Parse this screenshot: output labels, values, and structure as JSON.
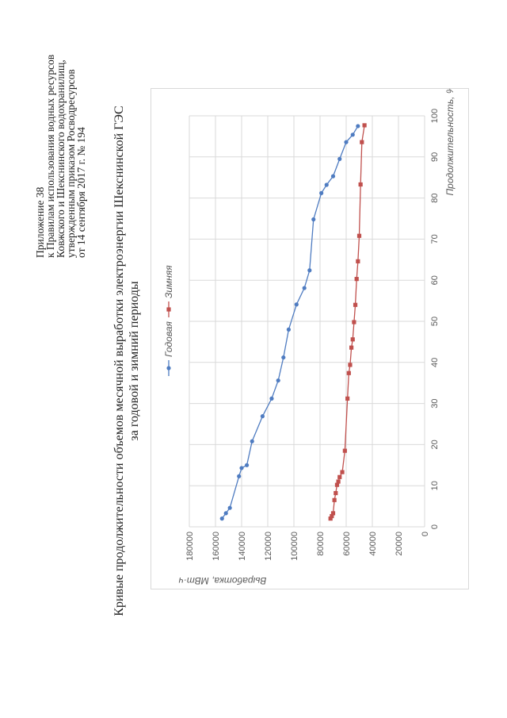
{
  "header": {
    "line1": "Приложение 38",
    "line2": "к Правилам использования водных ресурсов",
    "line3": "Ковжского и Шекснинского водохранилищ,",
    "line4": "утвержденным приказом Росводресурсов",
    "line5": "от 14 сентября 2017 г. № 194"
  },
  "title": {
    "line1": "Кривые продолжительности объемов месячной выработки электроэнергии Шекснинской ГЭС",
    "line2": "за годовой и зимний периоды"
  },
  "colors": {
    "series1": "#4f7cc1",
    "series2": "#c0504d",
    "grid": "#d9d9d9",
    "axis_text": "#595959"
  },
  "chart_data": {
    "type": "line",
    "title": "Кривые продолжительности объемов месячной выработки электроэнергии Шекснинской ГЭС за годовой и зимний периоды",
    "xlabel": "Продолжительность, %",
    "ylabel": "Выработка, МВт·ч",
    "xlim": [
      0,
      100
    ],
    "ylim": [
      0,
      180000
    ],
    "xticks": [
      0,
      10,
      20,
      30,
      40,
      50,
      60,
      70,
      80,
      90,
      100
    ],
    "xtick_labels": [
      "0",
      "10",
      "20",
      "30",
      "40",
      "50",
      "60",
      "70",
      "80",
      "90",
      "100"
    ],
    "yticks": [
      0,
      20000,
      40000,
      60000,
      80000,
      100000,
      120000,
      140000,
      160000,
      180000
    ],
    "ytick_labels": [
      "0",
      "20000",
      "40000",
      "60000",
      "80000",
      "100000",
      "120000",
      "140000",
      "160000",
      "180000"
    ],
    "grid": true,
    "legend_position": "top",
    "series": [
      {
        "name": "Годовая",
        "marker": "circle",
        "x": [
          2,
          3.3,
          4.6,
          12.3,
          14.3,
          15,
          20.8,
          26.9,
          31.2,
          35.6,
          41.2,
          48,
          54.1,
          58.1,
          62.4,
          74.8,
          81.2,
          83.2,
          85.3,
          89.5,
          93.6,
          95.4,
          97.5
        ],
        "y": [
          155000,
          152000,
          149000,
          142000,
          140000,
          136000,
          132000,
          124000,
          117000,
          112000,
          108000,
          104000,
          98000,
          92000,
          88000,
          85000,
          79000,
          75000,
          70000,
          65000,
          60000,
          55000,
          51000
        ]
      },
      {
        "name": "Зимняя",
        "marker": "square",
        "x": [
          2,
          2.6,
          3.3,
          6.5,
          8.2,
          10.2,
          11,
          12.1,
          13.3,
          18.5,
          31.2,
          37.4,
          39.4,
          43.6,
          45.6,
          49.8,
          54,
          60.3,
          64.6,
          70.8,
          83.3,
          93.6,
          97.7
        ],
        "y": [
          72000,
          71000,
          70000,
          69000,
          68000,
          67000,
          66000,
          65000,
          63000,
          61000,
          59000,
          58000,
          57000,
          56000,
          55000,
          54000,
          53000,
          52000,
          51000,
          50000,
          49000,
          48000,
          46000
        ]
      }
    ]
  }
}
